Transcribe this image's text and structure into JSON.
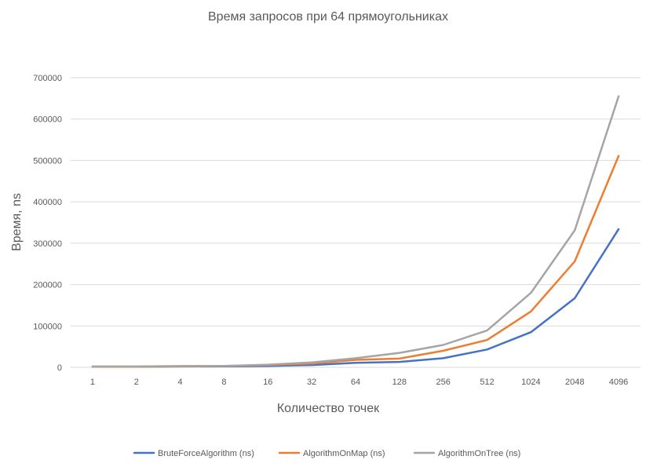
{
  "chart_data": {
    "type": "line",
    "title": "Время запросов при 64 прямоугольниках",
    "xlabel": "Количество точек",
    "ylabel": "Время, ns",
    "categories": [
      "1",
      "2",
      "4",
      "8",
      "16",
      "32",
      "64",
      "128",
      "256",
      "512",
      "1024",
      "2048",
      "4096"
    ],
    "yticks": [
      "0",
      "100000",
      "200000",
      "300000",
      "400000",
      "500000",
      "600000",
      "700000"
    ],
    "ylim": [
      0,
      700000
    ],
    "grid": "horizontal",
    "legend_position": "bottom",
    "series": [
      {
        "name": "BruteForceAlgorithm (ns)",
        "color": "#4472c4",
        "values": [
          1500,
          1500,
          2000,
          2500,
          3500,
          5500,
          11000,
          13000,
          22000,
          43000,
          85000,
          167000,
          334000
        ]
      },
      {
        "name": "AlgorithmOnMap (ns)",
        "color": "#ed7d31",
        "values": [
          1500,
          1500,
          2500,
          3000,
          5500,
          9000,
          18000,
          21000,
          40000,
          66000,
          135000,
          256000,
          511000
        ]
      },
      {
        "name": "AlgorithmOnTree (ns)",
        "color": "#a5a5a5",
        "values": [
          2000,
          2000,
          3000,
          3500,
          6500,
          12000,
          22000,
          35000,
          54000,
          89000,
          180000,
          331000,
          655000
        ]
      }
    ]
  }
}
